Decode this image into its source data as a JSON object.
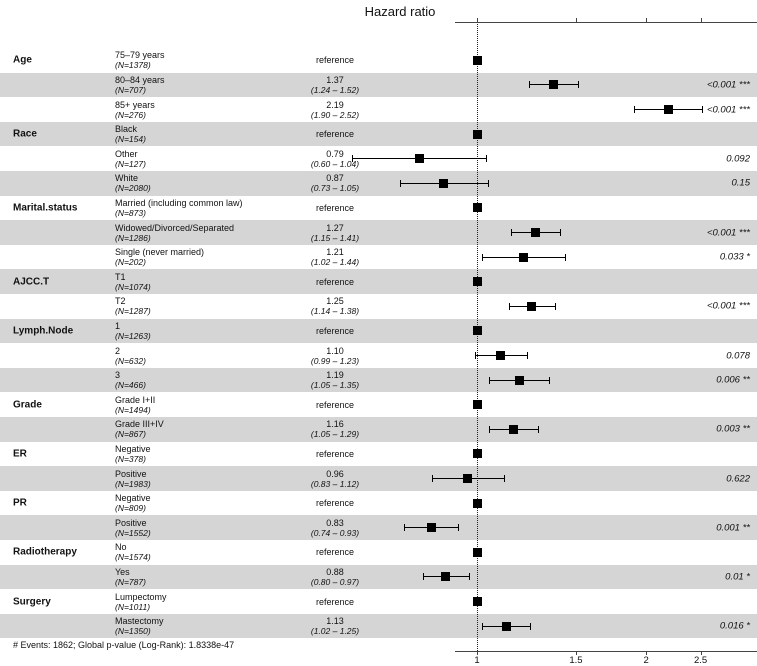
{
  "chart_data": {
    "type": "forest",
    "title": "Hazard ratio",
    "scale": "log",
    "xlim": [
      0.55,
      2.75
    ],
    "reference_line": 1,
    "reference_label": "reference",
    "x_ticks": [
      {
        "value": 1,
        "label": "1"
      },
      {
        "value": 1.5,
        "label": "1.5"
      },
      {
        "value": 2,
        "label": "2"
      },
      {
        "value": 2.5,
        "label": "2.5"
      }
    ],
    "footnote": "# Events: 1862; Global p-value (Log-Rank): 1.8338e-47",
    "groups": [
      {
        "name": "Age",
        "levels": [
          {
            "label": "75–79 years",
            "n": "(N=1378)",
            "reference": true,
            "hr": 1
          },
          {
            "label": "80–84 years",
            "n": "(N=707)",
            "hr": 1.37,
            "ci_low": 1.24,
            "ci_high": 1.52,
            "estimate": "1.37",
            "ci_text": "(1.24 – 1.52)",
            "p": "<0.001 ***"
          },
          {
            "label": "85+ years",
            "n": "(N=276)",
            "hr": 2.19,
            "ci_low": 1.9,
            "ci_high": 2.52,
            "estimate": "2.19",
            "ci_text": "(1.90 – 2.52)",
            "p": "<0.001 ***"
          }
        ]
      },
      {
        "name": "Race",
        "levels": [
          {
            "label": "Black",
            "n": "(N=154)",
            "reference": true,
            "hr": 1
          },
          {
            "label": "Other",
            "n": "(N=127)",
            "hr": 0.79,
            "ci_low": 0.6,
            "ci_high": 1.04,
            "estimate": "0.79",
            "ci_text": "(0.60 – 1.04)",
            "p": "0.092"
          },
          {
            "label": "White",
            "n": "(N=2080)",
            "hr": 0.87,
            "ci_low": 0.73,
            "ci_high": 1.05,
            "estimate": "0.87",
            "ci_text": "(0.73 – 1.05)",
            "p": "0.15"
          }
        ]
      },
      {
        "name": "Marital.status",
        "levels": [
          {
            "label": "Married (including common law)",
            "n": "(N=873)",
            "reference": true,
            "hr": 1
          },
          {
            "label": "Widowed/Divorced/Separated",
            "n": "(N=1286)",
            "hr": 1.27,
            "ci_low": 1.15,
            "ci_high": 1.41,
            "estimate": "1.27",
            "ci_text": "(1.15 – 1.41)",
            "p": "<0.001 ***"
          },
          {
            "label": "Single (never married)",
            "n": "(N=202)",
            "hr": 1.21,
            "ci_low": 1.02,
            "ci_high": 1.44,
            "estimate": "1.21",
            "ci_text": "(1.02 – 1.44)",
            "p": "0.033 *"
          }
        ]
      },
      {
        "name": "AJCC.T",
        "levels": [
          {
            "label": "T1",
            "n": "(N=1074)",
            "reference": true,
            "hr": 1
          },
          {
            "label": "T2",
            "n": "(N=1287)",
            "hr": 1.25,
            "ci_low": 1.14,
            "ci_high": 1.38,
            "estimate": "1.25",
            "ci_text": "(1.14 – 1.38)",
            "p": "<0.001 ***"
          }
        ]
      },
      {
        "name": "Lymph.Node",
        "levels": [
          {
            "label": "1",
            "n": "(N=1263)",
            "reference": true,
            "hr": 1
          },
          {
            "label": "2",
            "n": "(N=632)",
            "hr": 1.1,
            "ci_low": 0.99,
            "ci_high": 1.23,
            "estimate": "1.10",
            "ci_text": "(0.99 – 1.23)",
            "p": "0.078"
          },
          {
            "label": "3",
            "n": "(N=466)",
            "hr": 1.19,
            "ci_low": 1.05,
            "ci_high": 1.35,
            "estimate": "1.19",
            "ci_text": "(1.05 – 1.35)",
            "p": "0.006 **"
          }
        ]
      },
      {
        "name": "Grade",
        "levels": [
          {
            "label": "Grade I+II",
            "n": "(N=1494)",
            "reference": true,
            "hr": 1
          },
          {
            "label": "Grade III+IV",
            "n": "(N=867)",
            "hr": 1.16,
            "ci_low": 1.05,
            "ci_high": 1.29,
            "estimate": "1.16",
            "ci_text": "(1.05 – 1.29)",
            "p": "0.003 **"
          }
        ]
      },
      {
        "name": "ER",
        "levels": [
          {
            "label": "Negative",
            "n": "(N=378)",
            "reference": true,
            "hr": 1
          },
          {
            "label": "Positive",
            "n": "(N=1983)",
            "hr": 0.96,
            "ci_low": 0.83,
            "ci_high": 1.12,
            "estimate": "0.96",
            "ci_text": "(0.83 – 1.12)",
            "p": "0.622"
          }
        ]
      },
      {
        "name": "PR",
        "levels": [
          {
            "label": "Negative",
            "n": "(N=809)",
            "reference": true,
            "hr": 1
          },
          {
            "label": "Positive",
            "n": "(N=1552)",
            "hr": 0.83,
            "ci_low": 0.74,
            "ci_high": 0.93,
            "estimate": "0.83",
            "ci_text": "(0.74 – 0.93)",
            "p": "0.001 **"
          }
        ]
      },
      {
        "name": "Radiotherapy",
        "levels": [
          {
            "label": "No",
            "n": "(N=1574)",
            "reference": true,
            "hr": 1
          },
          {
            "label": "Yes",
            "n": "(N=787)",
            "hr": 0.88,
            "ci_low": 0.8,
            "ci_high": 0.97,
            "estimate": "0.88",
            "ci_text": "(0.80 – 0.97)",
            "p": "0.01 *"
          }
        ]
      },
      {
        "name": "Surgery",
        "levels": [
          {
            "label": "Lumpectomy",
            "n": "(N=1011)",
            "reference": true,
            "hr": 1
          },
          {
            "label": "Mastectomy",
            "n": "(N=1350)",
            "hr": 1.13,
            "ci_low": 1.02,
            "ci_high": 1.25,
            "estimate": "1.13",
            "ci_text": "(1.02 – 1.25)",
            "p": "0.016 *"
          }
        ]
      }
    ]
  },
  "colors": {
    "stripe": "#d5d5d5",
    "marker": "#000000",
    "text": "#111111"
  }
}
